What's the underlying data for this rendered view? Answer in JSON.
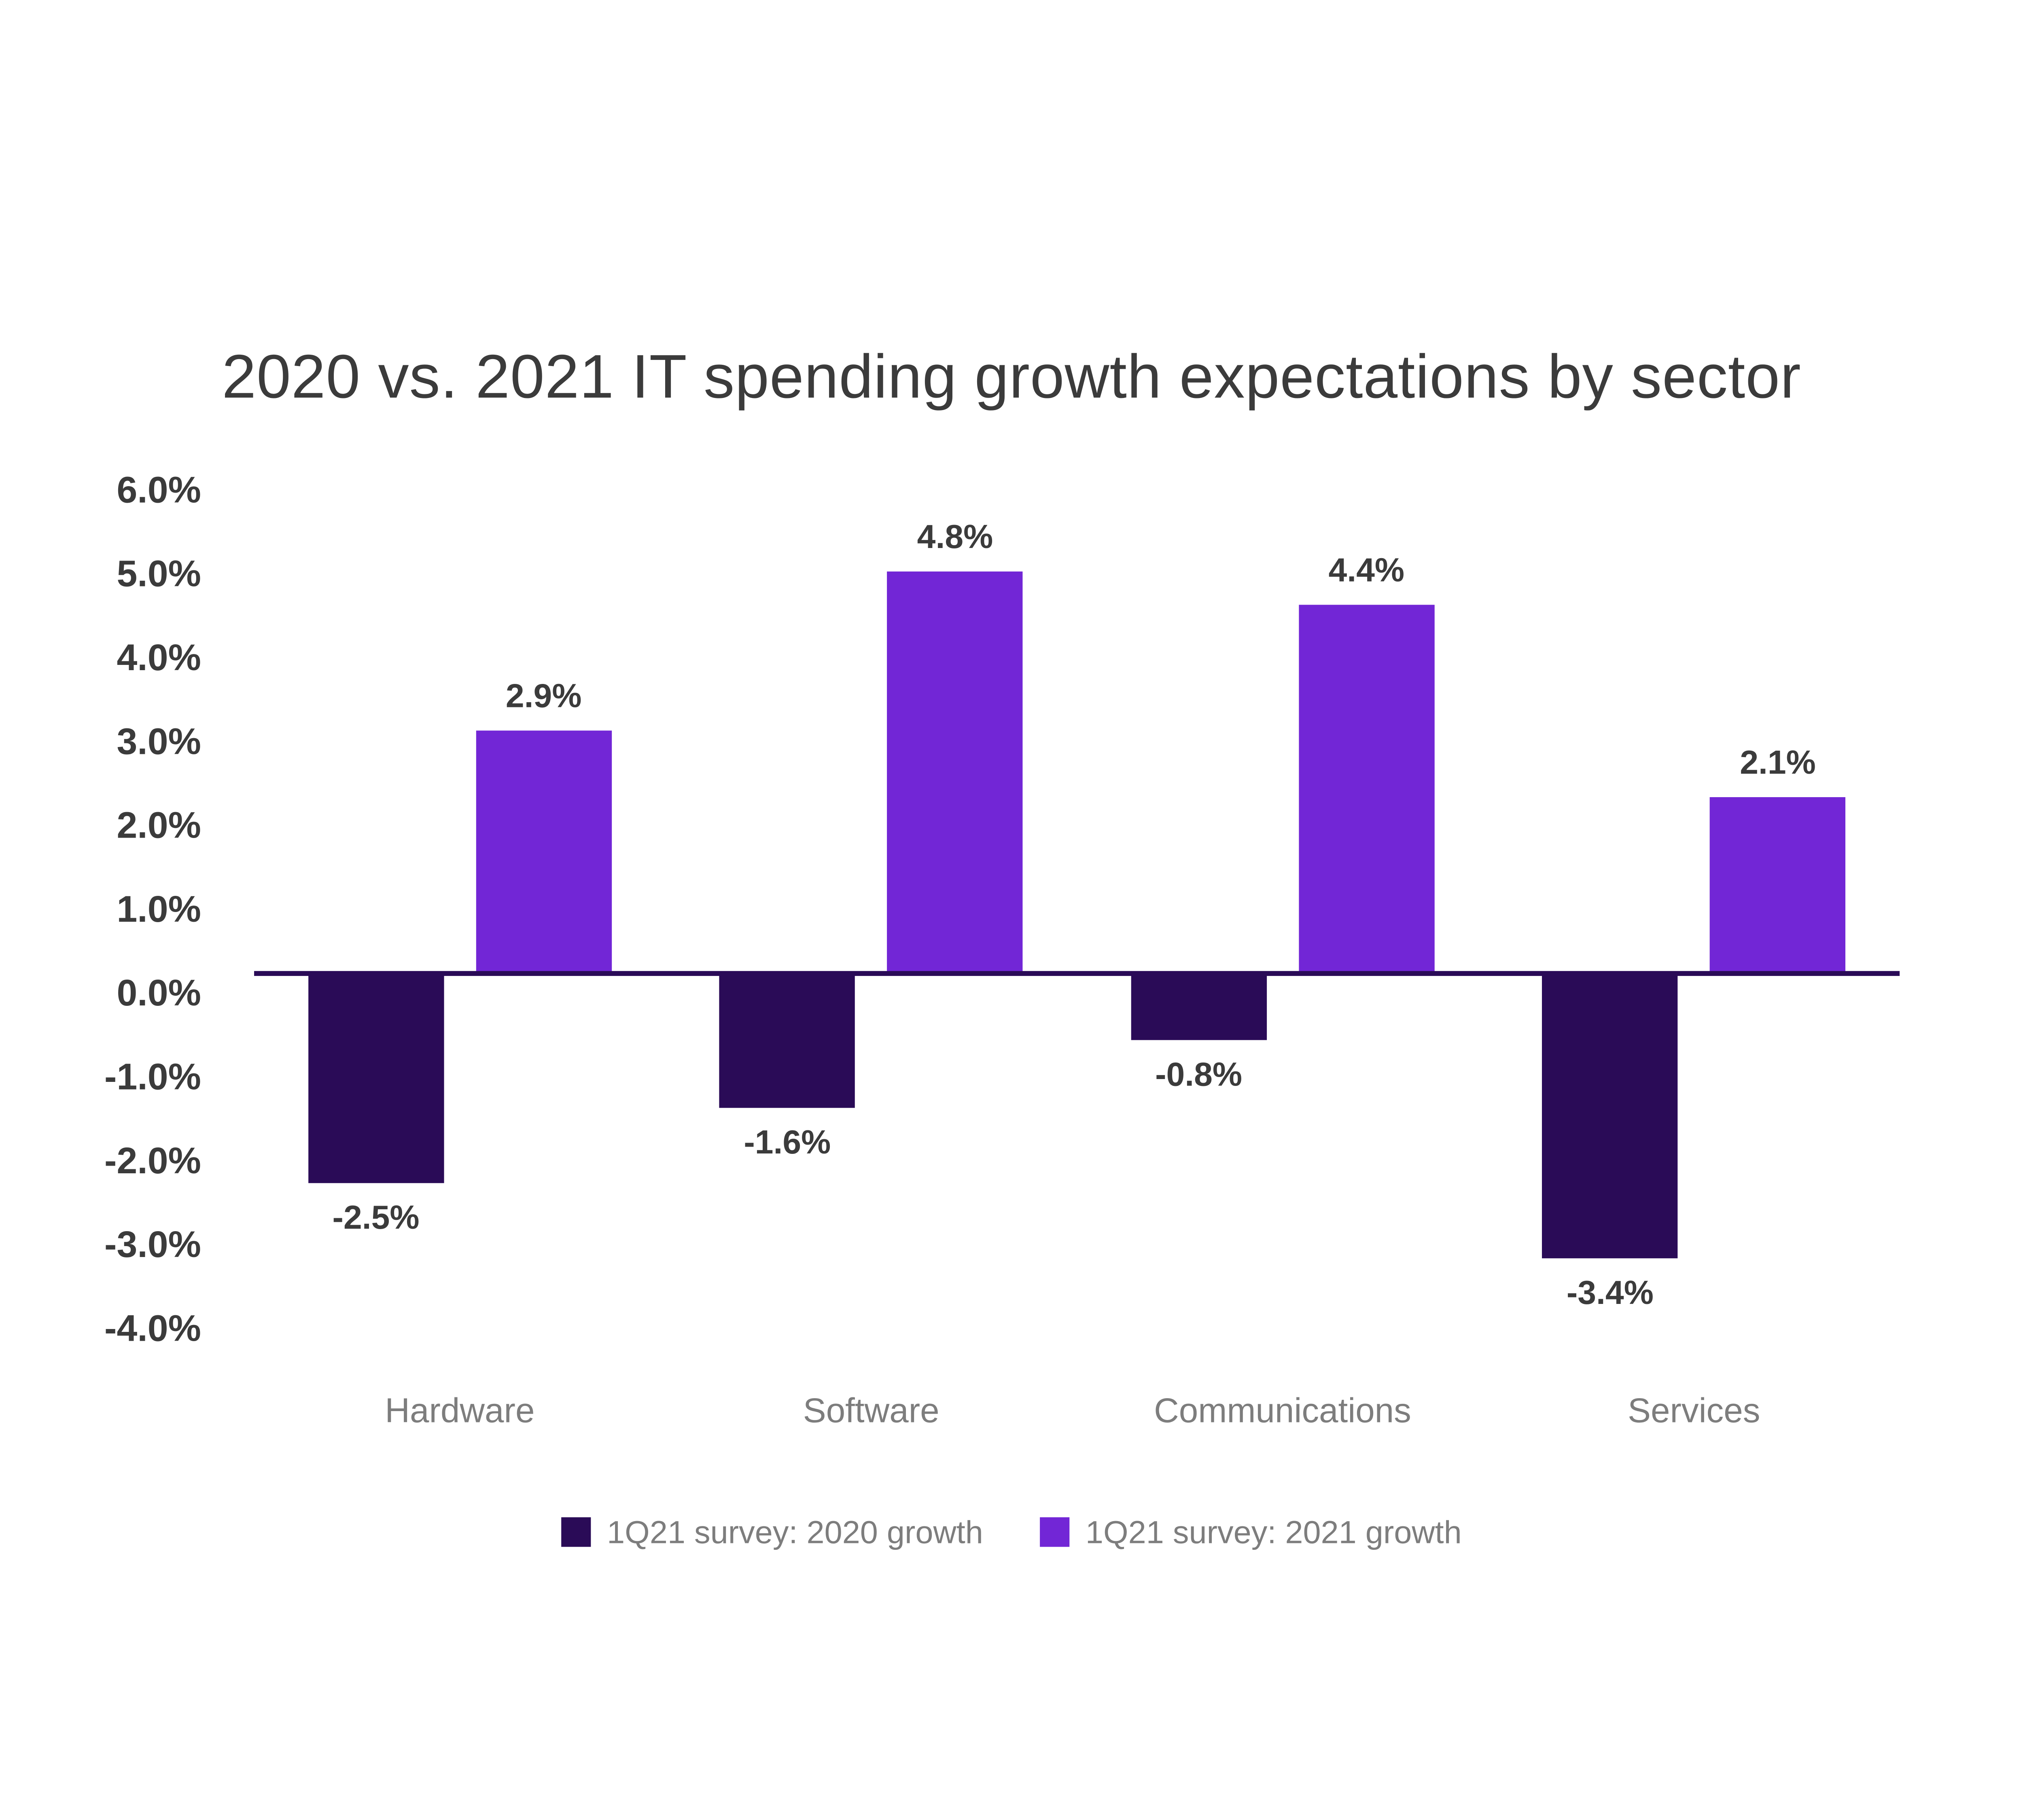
{
  "title": "2020 vs. 2021 IT spending growth expectations by sector",
  "colors": {
    "background": "#ffffff",
    "series_2020": "#2a0b57",
    "series_2021": "#7226d6",
    "zero_axis_line": "#2a0b57",
    "title_text": "#3b3b3b",
    "value_label_text": "#3b3b3b",
    "tick_label_text": "#3b3b3b",
    "category_label_text": "#7d7d7d",
    "legend_label_text": "#7d7d7d"
  },
  "chart_data": {
    "type": "bar",
    "title": "2020 vs. 2021 IT spending growth expectations by sector",
    "categories": [
      "Hardware",
      "Software",
      "Communications",
      "Services"
    ],
    "series": [
      {
        "name": "1Q21 survey: 2020 growth",
        "color": "#2a0b57",
        "values": [
          -2.5,
          -1.6,
          -0.8,
          -3.4
        ],
        "data_labels": [
          "-2.5%",
          "-1.6%",
          "-0.8%",
          "-3.4%"
        ]
      },
      {
        "name": "1Q21 survey: 2021 growth",
        "color": "#7226d6",
        "values": [
          2.9,
          4.8,
          4.4,
          2.1
        ],
        "data_labels": [
          "2.9%",
          "4.8%",
          "4.4%",
          "2.1%"
        ]
      }
    ],
    "y_axis": {
      "min": -4.0,
      "max": 6.0,
      "step": 1.0,
      "format": "percent",
      "tick_labels": [
        "6.0%",
        "5.0%",
        "4.0%",
        "3.0%",
        "2.0%",
        "1.0%",
        "0.0%",
        "-1.0%",
        "-2.0%",
        "-3.0%",
        "-4.0%"
      ]
    },
    "x_axis": {
      "labels": [
        "Hardware",
        "Software",
        "Communications",
        "Services"
      ]
    },
    "grid": false,
    "zero_line": true,
    "legend_position": "bottom"
  }
}
